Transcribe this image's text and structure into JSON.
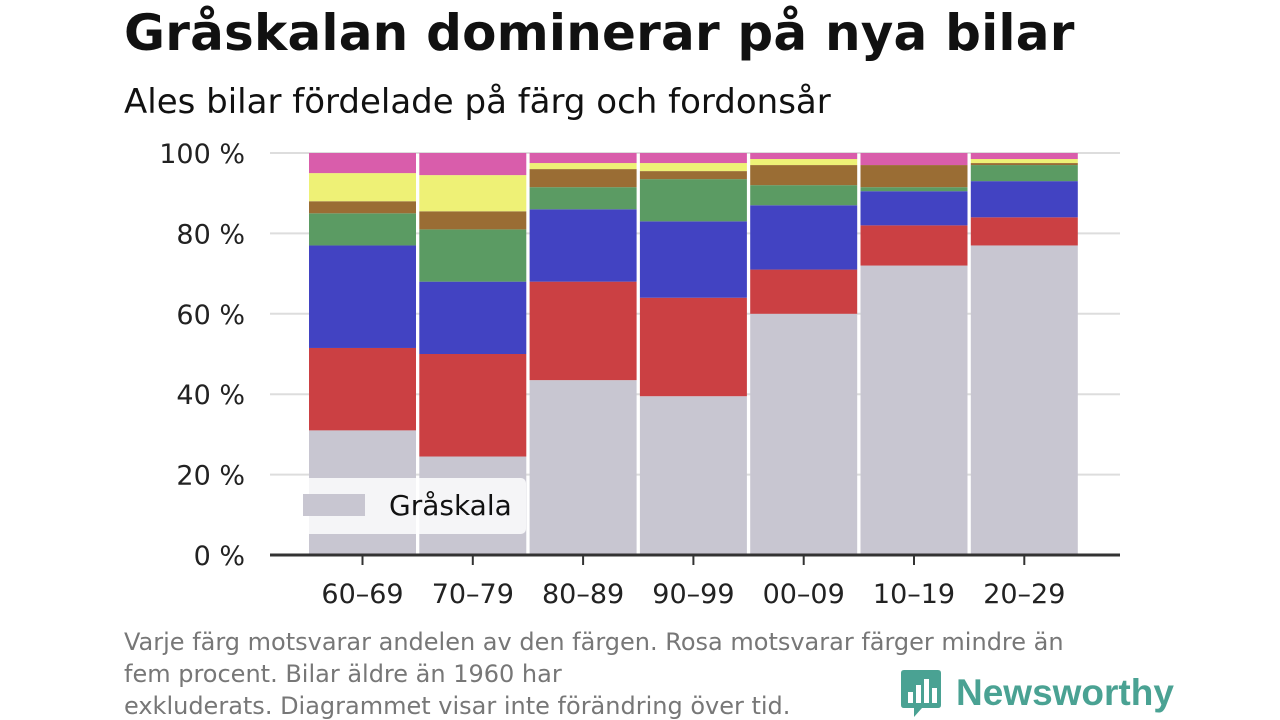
{
  "header": {
    "title": "Gråskalan dominerar på nya bilar",
    "subtitle": "Ales bilar fördelade på färg och fordonsår"
  },
  "colors": {
    "Gråskala": "#c8c6d1",
    "Röd": "#cb4043",
    "Blå": "#4243c2",
    "Grön": "#5b9b63",
    "Brun": "#9a6d34",
    "Gul": "#eef176",
    "Rosa": "#d95dab",
    "axis": "#333333",
    "grid": "#dddddd",
    "brand": "#4aa293"
  },
  "chart_data": {
    "type": "bar",
    "stacked": true,
    "categories": [
      "60–69",
      "70–79",
      "80–89",
      "90–99",
      "00–09",
      "10–19",
      "20–29"
    ],
    "y_ticks": [
      "0 %",
      "20 %",
      "40 %",
      "60 %",
      "80 %",
      "100 %"
    ],
    "ylim": [
      0,
      100
    ],
    "grid": true,
    "legend_position": "bottom-left",
    "legend": [
      "Gråskala"
    ],
    "series": [
      {
        "name": "Gråskala",
        "values": [
          31,
          24.5,
          43.5,
          39.5,
          60,
          72,
          77
        ]
      },
      {
        "values": [
          20.5,
          25.5,
          24.5,
          24.5,
          11,
          10,
          7
        ]
      },
      {
        "values": [
          25.5,
          18,
          18,
          19,
          16,
          8.5,
          9
        ]
      },
      {
        "values": [
          8,
          13,
          5.5,
          10.5,
          5,
          1,
          4
        ]
      },
      {
        "values": [
          3,
          4.5,
          4.5,
          2,
          5,
          5.5,
          0.5
        ]
      },
      {
        "values": [
          7,
          9,
          1.5,
          2,
          1.5,
          0,
          1
        ]
      },
      {
        "values": [
          5,
          5.5,
          2.5,
          2.5,
          1.5,
          3,
          1.5
        ]
      }
    ],
    "series_colors": [
      "#c8c6d1",
      "#cb4043",
      "#4243c2",
      "#5b9b63",
      "#9a6d34",
      "#eef176",
      "#d95dab"
    ]
  },
  "footnote": [
    "Varje färg motsvarar andelen av den färgen. Rosa motsvarar färger mindre än",
    "fem procent. Bilar äldre än 1960 har",
    "exkluderats. Diagrammet visar inte förändring över tid."
  ],
  "brand": {
    "name": "Newsworthy",
    "icon": "bar-chart-speech-bubble-icon"
  }
}
